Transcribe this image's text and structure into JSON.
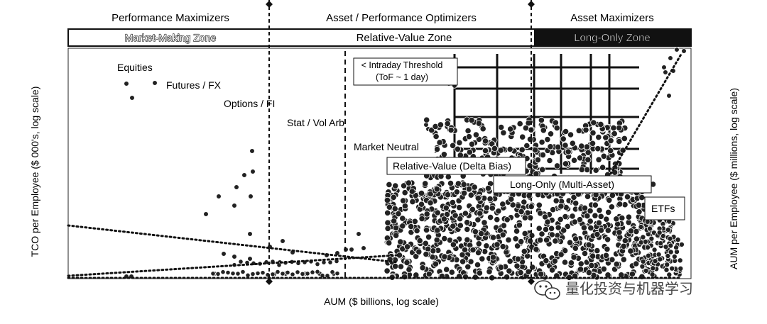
{
  "chart_data": {
    "type": "scatter",
    "title": "",
    "xlabel": "AUM ($ billions, log scale)",
    "ylabel_left": "TCO per Employee ($ 000's, log scale)",
    "ylabel_right": "AUM per Employee ($ millions, log scale)",
    "x_scale": "log",
    "y_scale": "log",
    "grid": false,
    "legend": "none",
    "zones_top": [
      "Performance Maximizers",
      "Asset / Performance Optimizers",
      "Asset Maximizers"
    ],
    "zones_band": [
      "Market-Making Zone",
      "Relative-Value Zone",
      "Long-Only Zone"
    ],
    "threshold_label_line1": "< Intraday Threshold",
    "threshold_label_line2": "(ToF ~ 1 day)",
    "category_labels": [
      "Equities",
      "Futures / FX",
      "Options / FI",
      "Stat / Vol Arb",
      "Market Neutral",
      "Relative-Value (Delta Bias)",
      "Long-Only (Multi-Asset)",
      "ETFs"
    ],
    "watermark": "量化投资与机器学习",
    "colors": {
      "points": "#222222",
      "lines": "#111111",
      "background": "#ffffff"
    }
  }
}
